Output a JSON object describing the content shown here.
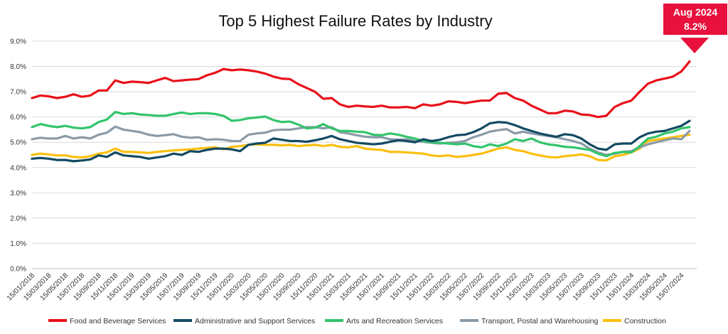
{
  "chart_data": {
    "type": "line",
    "title": "Top 5 Highest Failure Rates by Industry",
    "xlabel": "",
    "ylabel": "",
    "ylim": [
      0,
      9
    ],
    "y_ticks": [
      "0.0%",
      "1.0%",
      "2.0%",
      "3.0%",
      "4.0%",
      "5.0%",
      "6.0%",
      "7.0%",
      "8.0%",
      "9.0%"
    ],
    "x_tick_labels": [
      "15/01/2018",
      "15/03/2018",
      "15/05/2018",
      "15/07/2018",
      "15/09/2018",
      "15/11/2018",
      "15/01/2019",
      "15/03/2019",
      "15/05/2019",
      "15/07/2019",
      "15/09/2019",
      "15/11/2019",
      "15/01/2020",
      "15/03/2020",
      "15/05/2020",
      "15/07/2020",
      "15/09/2020",
      "15/11/2020",
      "15/01/2021",
      "15/03/2021",
      "15/05/2021",
      "15/07/2021",
      "15/09/2021",
      "15/11/2021",
      "15/01/2022",
      "15/03/2022",
      "15/05/2022",
      "15/07/2022",
      "15/09/2022",
      "15/11/2022",
      "15/01/2023",
      "15/03/2023",
      "15/05/2023",
      "15/07/2023",
      "15/09/2023",
      "15/11/2023",
      "15/01/2024",
      "15/03/2024",
      "15/05/2024",
      "15/07/2024"
    ],
    "grid": true,
    "legend_position": "bottom",
    "callout": {
      "line1": "Aug 2024",
      "line2": "8.2%",
      "color": "#e8103c"
    },
    "x_note": "monthly points from Jan 2018 to Aug 2024 (80 months)",
    "series": [
      {
        "name": "Food and Beverage Services",
        "color": "#e8101a",
        "values": [
          6.75,
          6.85,
          6.82,
          6.75,
          6.8,
          6.9,
          6.8,
          6.85,
          7.05,
          7.05,
          7.45,
          7.35,
          7.4,
          7.38,
          7.35,
          7.45,
          7.55,
          7.42,
          7.45,
          7.48,
          7.5,
          7.65,
          7.75,
          7.9,
          7.85,
          7.88,
          7.85,
          7.8,
          7.72,
          7.6,
          7.52,
          7.5,
          7.3,
          7.15,
          7.0,
          6.72,
          6.75,
          6.5,
          6.4,
          6.45,
          6.42,
          6.4,
          6.45,
          6.38,
          6.38,
          6.4,
          6.35,
          6.5,
          6.45,
          6.5,
          6.62,
          6.6,
          6.55,
          6.6,
          6.65,
          6.65,
          6.92,
          6.95,
          6.75,
          6.65,
          6.45,
          6.3,
          6.15,
          6.15,
          6.25,
          6.22,
          6.1,
          6.08,
          6.0,
          6.05,
          6.4,
          6.55,
          6.65,
          7.0,
          7.32,
          7.45,
          7.52,
          7.6,
          7.8,
          8.2
        ]
      },
      {
        "name": "Administrative and Support Services",
        "color": "#134a63",
        "values": [
          4.35,
          4.38,
          4.35,
          4.3,
          4.3,
          4.25,
          4.28,
          4.32,
          4.48,
          4.42,
          4.6,
          4.48,
          4.45,
          4.42,
          4.35,
          4.4,
          4.45,
          4.55,
          4.5,
          4.65,
          4.62,
          4.7,
          4.75,
          4.75,
          4.72,
          4.65,
          4.9,
          4.95,
          4.98,
          5.15,
          5.1,
          5.05,
          5.05,
          5.02,
          5.08,
          5.15,
          5.25,
          5.12,
          5.05,
          4.98,
          4.95,
          4.92,
          4.95,
          5.02,
          5.08,
          5.05,
          5.0,
          5.12,
          5.05,
          5.1,
          5.2,
          5.28,
          5.3,
          5.4,
          5.55,
          5.75,
          5.8,
          5.78,
          5.68,
          5.55,
          5.45,
          5.35,
          5.28,
          5.22,
          5.32,
          5.28,
          5.15,
          4.92,
          4.75,
          4.7,
          4.92,
          4.95,
          4.95,
          5.2,
          5.35,
          5.42,
          5.45,
          5.55,
          5.65,
          5.85
        ]
      },
      {
        "name": "Arts and Recreation Services",
        "color": "#33c46c",
        "values": [
          5.6,
          5.72,
          5.65,
          5.6,
          5.65,
          5.58,
          5.55,
          5.6,
          5.8,
          5.9,
          6.2,
          6.12,
          6.15,
          6.1,
          6.08,
          6.05,
          6.05,
          6.12,
          6.18,
          6.12,
          6.15,
          6.15,
          6.12,
          6.05,
          5.85,
          5.88,
          5.95,
          5.98,
          6.02,
          5.88,
          5.8,
          5.82,
          5.7,
          5.55,
          5.58,
          5.72,
          5.55,
          5.45,
          5.45,
          5.42,
          5.4,
          5.3,
          5.28,
          5.35,
          5.3,
          5.22,
          5.15,
          5.05,
          5.0,
          4.98,
          4.95,
          4.92,
          4.95,
          4.85,
          4.8,
          4.92,
          4.85,
          4.95,
          5.12,
          5.05,
          5.15,
          5.0,
          4.92,
          4.88,
          4.82,
          4.8,
          4.75,
          4.7,
          4.55,
          4.45,
          4.58,
          4.62,
          4.6,
          4.85,
          5.15,
          5.22,
          5.35,
          5.42,
          5.55,
          5.6
        ]
      },
      {
        "name": "Transport, Postal and Warehousing",
        "color": "#8b9ba8",
        "values": [
          5.12,
          5.18,
          5.15,
          5.15,
          5.25,
          5.15,
          5.2,
          5.15,
          5.3,
          5.38,
          5.62,
          5.5,
          5.45,
          5.4,
          5.3,
          5.25,
          5.28,
          5.32,
          5.22,
          5.18,
          5.2,
          5.1,
          5.12,
          5.1,
          5.05,
          5.05,
          5.3,
          5.35,
          5.38,
          5.48,
          5.5,
          5.5,
          5.55,
          5.6,
          5.6,
          5.55,
          5.6,
          5.4,
          5.35,
          5.28,
          5.22,
          5.2,
          5.2,
          5.12,
          5.1,
          5.12,
          5.05,
          5.02,
          4.98,
          4.95,
          4.98,
          5.0,
          5.05,
          5.2,
          5.3,
          5.42,
          5.48,
          5.52,
          5.35,
          5.42,
          5.35,
          5.3,
          5.25,
          5.2,
          5.12,
          5.05,
          4.95,
          4.75,
          4.6,
          4.5,
          4.55,
          4.62,
          4.65,
          4.8,
          4.92,
          5.0,
          5.08,
          5.15,
          5.12,
          5.45
        ]
      },
      {
        "name": "Construction",
        "color": "#fbbf0f",
        "values": [
          4.5,
          4.55,
          4.52,
          4.48,
          4.48,
          4.42,
          4.4,
          4.45,
          4.55,
          4.6,
          4.75,
          4.62,
          4.62,
          4.6,
          4.58,
          4.62,
          4.65,
          4.68,
          4.7,
          4.72,
          4.75,
          4.78,
          4.8,
          4.72,
          4.82,
          4.85,
          4.9,
          4.92,
          4.9,
          4.9,
          4.88,
          4.9,
          4.85,
          4.88,
          4.9,
          4.85,
          4.9,
          4.82,
          4.8,
          4.85,
          4.75,
          4.72,
          4.7,
          4.62,
          4.62,
          4.6,
          4.58,
          4.55,
          4.48,
          4.45,
          4.48,
          4.42,
          4.45,
          4.5,
          4.55,
          4.65,
          4.75,
          4.8,
          4.7,
          4.65,
          4.55,
          4.48,
          4.42,
          4.4,
          4.45,
          4.48,
          4.52,
          4.45,
          4.3,
          4.28,
          4.45,
          4.5,
          4.6,
          4.75,
          5.05,
          5.1,
          5.15,
          5.2,
          5.25,
          5.3
        ]
      }
    ]
  }
}
